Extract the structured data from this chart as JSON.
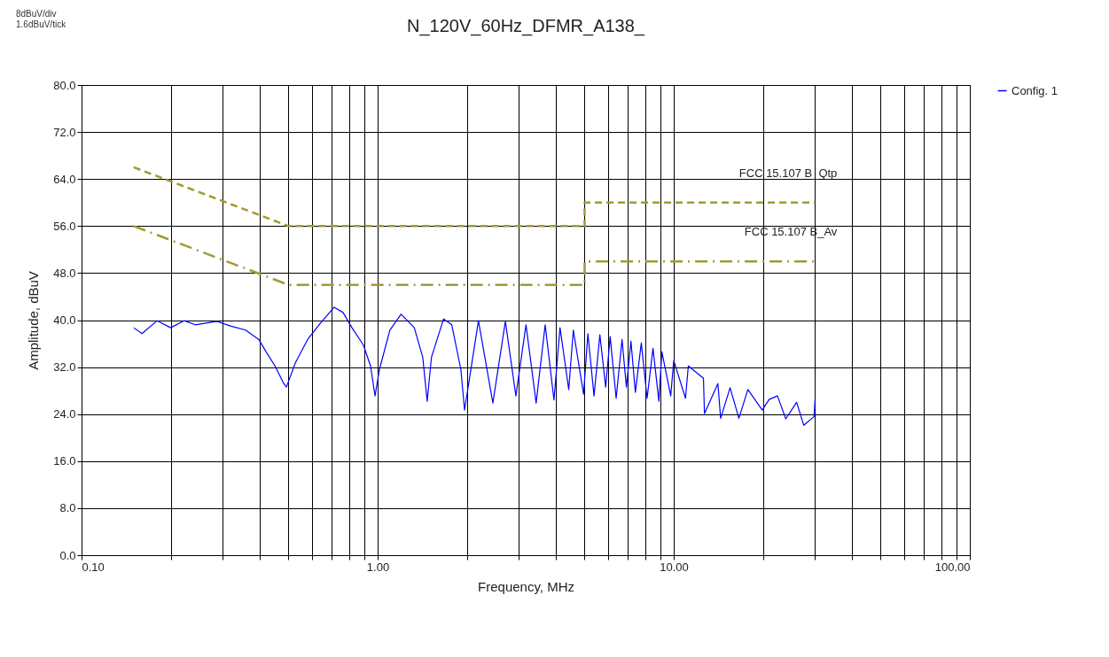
{
  "chart_data": {
    "type": "line",
    "title": "N_120V_60Hz_DFMR_A138_",
    "xlabel": "Frequency, MHz",
    "ylabel": "Amplitude, dBuV",
    "annotations": [
      "8dBuV/div",
      "1.6dBuV/tick"
    ],
    "log": "x",
    "grid": true,
    "legend": "right",
    "xlim": [
      0.1,
      100
    ],
    "ylim": [
      0,
      80
    ],
    "xticks": [
      {
        "value": 0.1,
        "label": "0.10"
      },
      {
        "value": 0.2,
        "label": null
      },
      {
        "value": 0.3,
        "label": null
      },
      {
        "value": 0.4,
        "label": null
      },
      {
        "value": 0.5,
        "label": null
      },
      {
        "value": 0.6,
        "label": null
      },
      {
        "value": 0.7,
        "label": null
      },
      {
        "value": 0.8,
        "label": null
      },
      {
        "value": 0.9,
        "label": null
      },
      {
        "value": 1,
        "label": "1.00"
      },
      {
        "value": 2,
        "label": null
      },
      {
        "value": 3,
        "label": null
      },
      {
        "value": 4,
        "label": null
      },
      {
        "value": 5,
        "label": null
      },
      {
        "value": 6,
        "label": null
      },
      {
        "value": 7,
        "label": null
      },
      {
        "value": 8,
        "label": null
      },
      {
        "value": 9,
        "label": null
      },
      {
        "value": 10,
        "label": "10.00"
      },
      {
        "value": 20,
        "label": null
      },
      {
        "value": 30,
        "label": null
      },
      {
        "value": 40,
        "label": null
      },
      {
        "value": 50,
        "label": null
      },
      {
        "value": 60,
        "label": null
      },
      {
        "value": 70,
        "label": null
      },
      {
        "value": 80,
        "label": null
      },
      {
        "value": 90,
        "label": null
      },
      {
        "value": 100,
        "label": "100.00"
      }
    ],
    "yticks": [
      {
        "value": 0,
        "label": "0.0"
      },
      {
        "value": 8,
        "label": "8.0"
      },
      {
        "value": 16,
        "label": "16.0"
      },
      {
        "value": 24,
        "label": "24.0"
      },
      {
        "value": 32,
        "label": "32.0"
      },
      {
        "value": 40,
        "label": "40.0"
      },
      {
        "value": 48,
        "label": "48.0"
      },
      {
        "value": 56,
        "label": "56.0"
      },
      {
        "value": 64,
        "label": "64.0"
      },
      {
        "value": 72,
        "label": "72.0"
      },
      {
        "value": 80,
        "label": "80.0"
      }
    ],
    "series": [
      {
        "name": "FCC 15.107 B_Qtp",
        "color": "#a09a32",
        "line_style": "dashed",
        "x": [
          0.15,
          0.5,
          5,
          5,
          30
        ],
        "values": [
          66,
          56,
          56,
          60,
          60
        ]
      },
      {
        "name": "FCC 15.107 B_Av",
        "color": "#a09a32",
        "line_style": "dashdot",
        "x": [
          0.15,
          0.5,
          5,
          5,
          30
        ],
        "values": [
          56,
          46,
          46,
          50,
          50
        ]
      },
      {
        "name": "Config. 1",
        "color": "#0000ff",
        "line_style": "solid",
        "x": [
          0.15,
          0.16,
          0.18,
          0.2,
          0.222,
          0.242,
          0.287,
          0.318,
          0.358,
          0.397,
          0.42,
          0.45,
          0.482,
          0.492,
          0.527,
          0.58,
          0.634,
          0.713,
          0.764,
          0.819,
          0.896,
          0.946,
          0.98,
          1.014,
          1.1,
          1.2,
          1.33,
          1.42,
          1.47,
          1.52,
          1.67,
          1.78,
          1.91,
          1.966,
          2.19,
          2.45,
          2.7,
          2.93,
          3.17,
          3.43,
          3.68,
          3.94,
          4.13,
          4.42,
          4.58,
          4.96,
          5.13,
          5.38,
          5.63,
          5.89,
          6.1,
          6.39,
          6.69,
          6.92,
          7.17,
          7.42,
          7.77,
          8.13,
          8.51,
          8.91,
          9.12,
          9.77,
          10,
          10.96,
          11.2,
          12.6,
          12.7,
          14.1,
          14.4,
          15.5,
          16.6,
          17.8,
          19.9,
          21,
          22.4,
          23.9,
          26,
          27.5,
          29.8,
          30
        ],
        "values": [
          38.7,
          37.7,
          39.9,
          38.7,
          39.9,
          39.2,
          39.8,
          39.0,
          38.3,
          36.7,
          34.6,
          32.2,
          29.2,
          28.6,
          32.7,
          36.7,
          39.2,
          42.2,
          41.3,
          38.7,
          35.7,
          32.2,
          27.1,
          31.6,
          38.3,
          41.0,
          38.7,
          33.7,
          26.2,
          33.7,
          40.2,
          39.2,
          31.6,
          24.7,
          39.9,
          25.9,
          39.8,
          27.1,
          39.2,
          25.9,
          39.2,
          26.4,
          38.7,
          28.2,
          38.3,
          27.4,
          37.7,
          27.1,
          37.5,
          28.6,
          37.2,
          26.7,
          36.7,
          28.6,
          36.4,
          27.7,
          36.1,
          26.7,
          35.2,
          26.2,
          34.6,
          27.1,
          33.1,
          26.7,
          32.2,
          30.1,
          24.1,
          29.2,
          23.3,
          28.5,
          23.3,
          28.2,
          24.7,
          26.5,
          27.1,
          23.2,
          26.0,
          22.1,
          23.6,
          26.4
        ]
      }
    ]
  }
}
